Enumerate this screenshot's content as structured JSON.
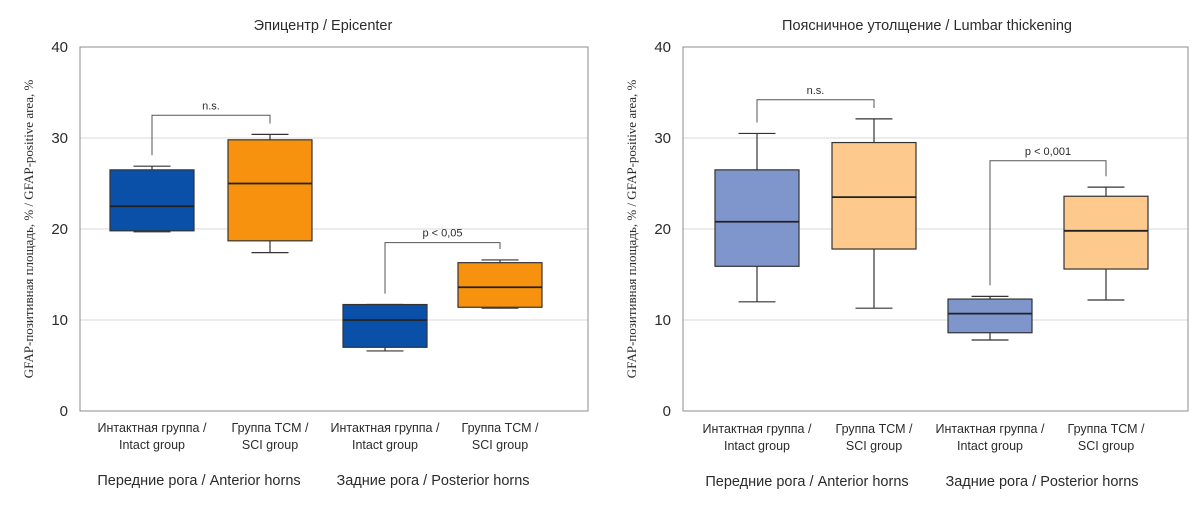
{
  "chart_data": [
    {
      "type": "box",
      "title": "Эпицентр / Epicenter",
      "ylabel": "GFAP-позитивная площадь, % / GFAP-positive area, %",
      "ylim": [
        0,
        40
      ],
      "yticks": [
        0,
        10,
        20,
        30,
        40
      ],
      "grid": true,
      "categories": [
        "Интактная группа / Intact group",
        "Группа ТСМ / SCI group",
        "Интактная группа / Intact group",
        "Группа ТСМ / SCI group"
      ],
      "category_lines": [
        [
          "Интактная группа /",
          "Intact group"
        ],
        [
          "Группа ТСМ /",
          "SCI group"
        ],
        [
          "Интактная группа /",
          "Intact group"
        ],
        [
          "Группа ТСМ /",
          "SCI group"
        ]
      ],
      "groups": [
        "Передние рога / Anterior horns",
        "Задние рога / Posterior horns"
      ],
      "boxes": [
        {
          "min": 19.7,
          "q1": 19.8,
          "median": 22.5,
          "q3": 26.5,
          "max": 26.9,
          "color": "#0a4fa8"
        },
        {
          "min": 17.4,
          "q1": 18.7,
          "median": 25.0,
          "q3": 29.8,
          "max": 30.4,
          "color": "#f7920e"
        },
        {
          "min": 6.6,
          "q1": 7.0,
          "median": 10.0,
          "q3": 11.7,
          "max": 11.7,
          "color": "#0a4fa8"
        },
        {
          "min": 11.3,
          "q1": 11.4,
          "median": 13.6,
          "q3": 16.3,
          "max": 16.6,
          "color": "#f7920e"
        }
      ],
      "annotations": [
        {
          "from": 0,
          "to": 1,
          "text": "n.s.",
          "y": 32.5
        },
        {
          "from": 2,
          "to": 3,
          "text": "p < 0,05",
          "y": 18.5
        }
      ]
    },
    {
      "type": "box",
      "title": "Поясничное утолщение / Lumbar thickening",
      "ylabel": "GFAP-позитивная площадь, % / GFAP-positive area, %",
      "ylim": [
        0,
        40
      ],
      "yticks": [
        0,
        10,
        20,
        30,
        40
      ],
      "grid": true,
      "categories": [
        "Интактная группа / Intact group",
        "Группа ТСМ / SCI group",
        "Интактная группа / Intact group",
        "Группа ТСМ / SCI group"
      ],
      "category_lines": [
        [
          "Интактная группа /",
          "Intact group"
        ],
        [
          "Группа ТСМ /",
          "SCI group"
        ],
        [
          "Интактная группа /",
          "Intact group"
        ],
        [
          "Группа ТСМ /",
          "SCI group"
        ]
      ],
      "groups": [
        "Передние рога / Anterior horns",
        "Задние рога / Posterior horns"
      ],
      "boxes": [
        {
          "min": 12.0,
          "q1": 15.9,
          "median": 20.8,
          "q3": 26.5,
          "max": 30.5,
          "color": "#7e96cb"
        },
        {
          "min": 11.3,
          "q1": 17.8,
          "median": 23.5,
          "q3": 29.5,
          "max": 32.1,
          "color": "#fdc98d"
        },
        {
          "min": 7.8,
          "q1": 8.6,
          "median": 10.7,
          "q3": 12.3,
          "max": 12.6,
          "color": "#7e96cb"
        },
        {
          "min": 12.2,
          "q1": 15.6,
          "median": 19.8,
          "q3": 23.6,
          "max": 24.6,
          "color": "#fdc98d"
        }
      ],
      "annotations": [
        {
          "from": 0,
          "to": 1,
          "text": "n.s.",
          "y": 34.2
        },
        {
          "from": 2,
          "to": 3,
          "text": "p < 0,001",
          "y": 27.5
        }
      ]
    }
  ]
}
